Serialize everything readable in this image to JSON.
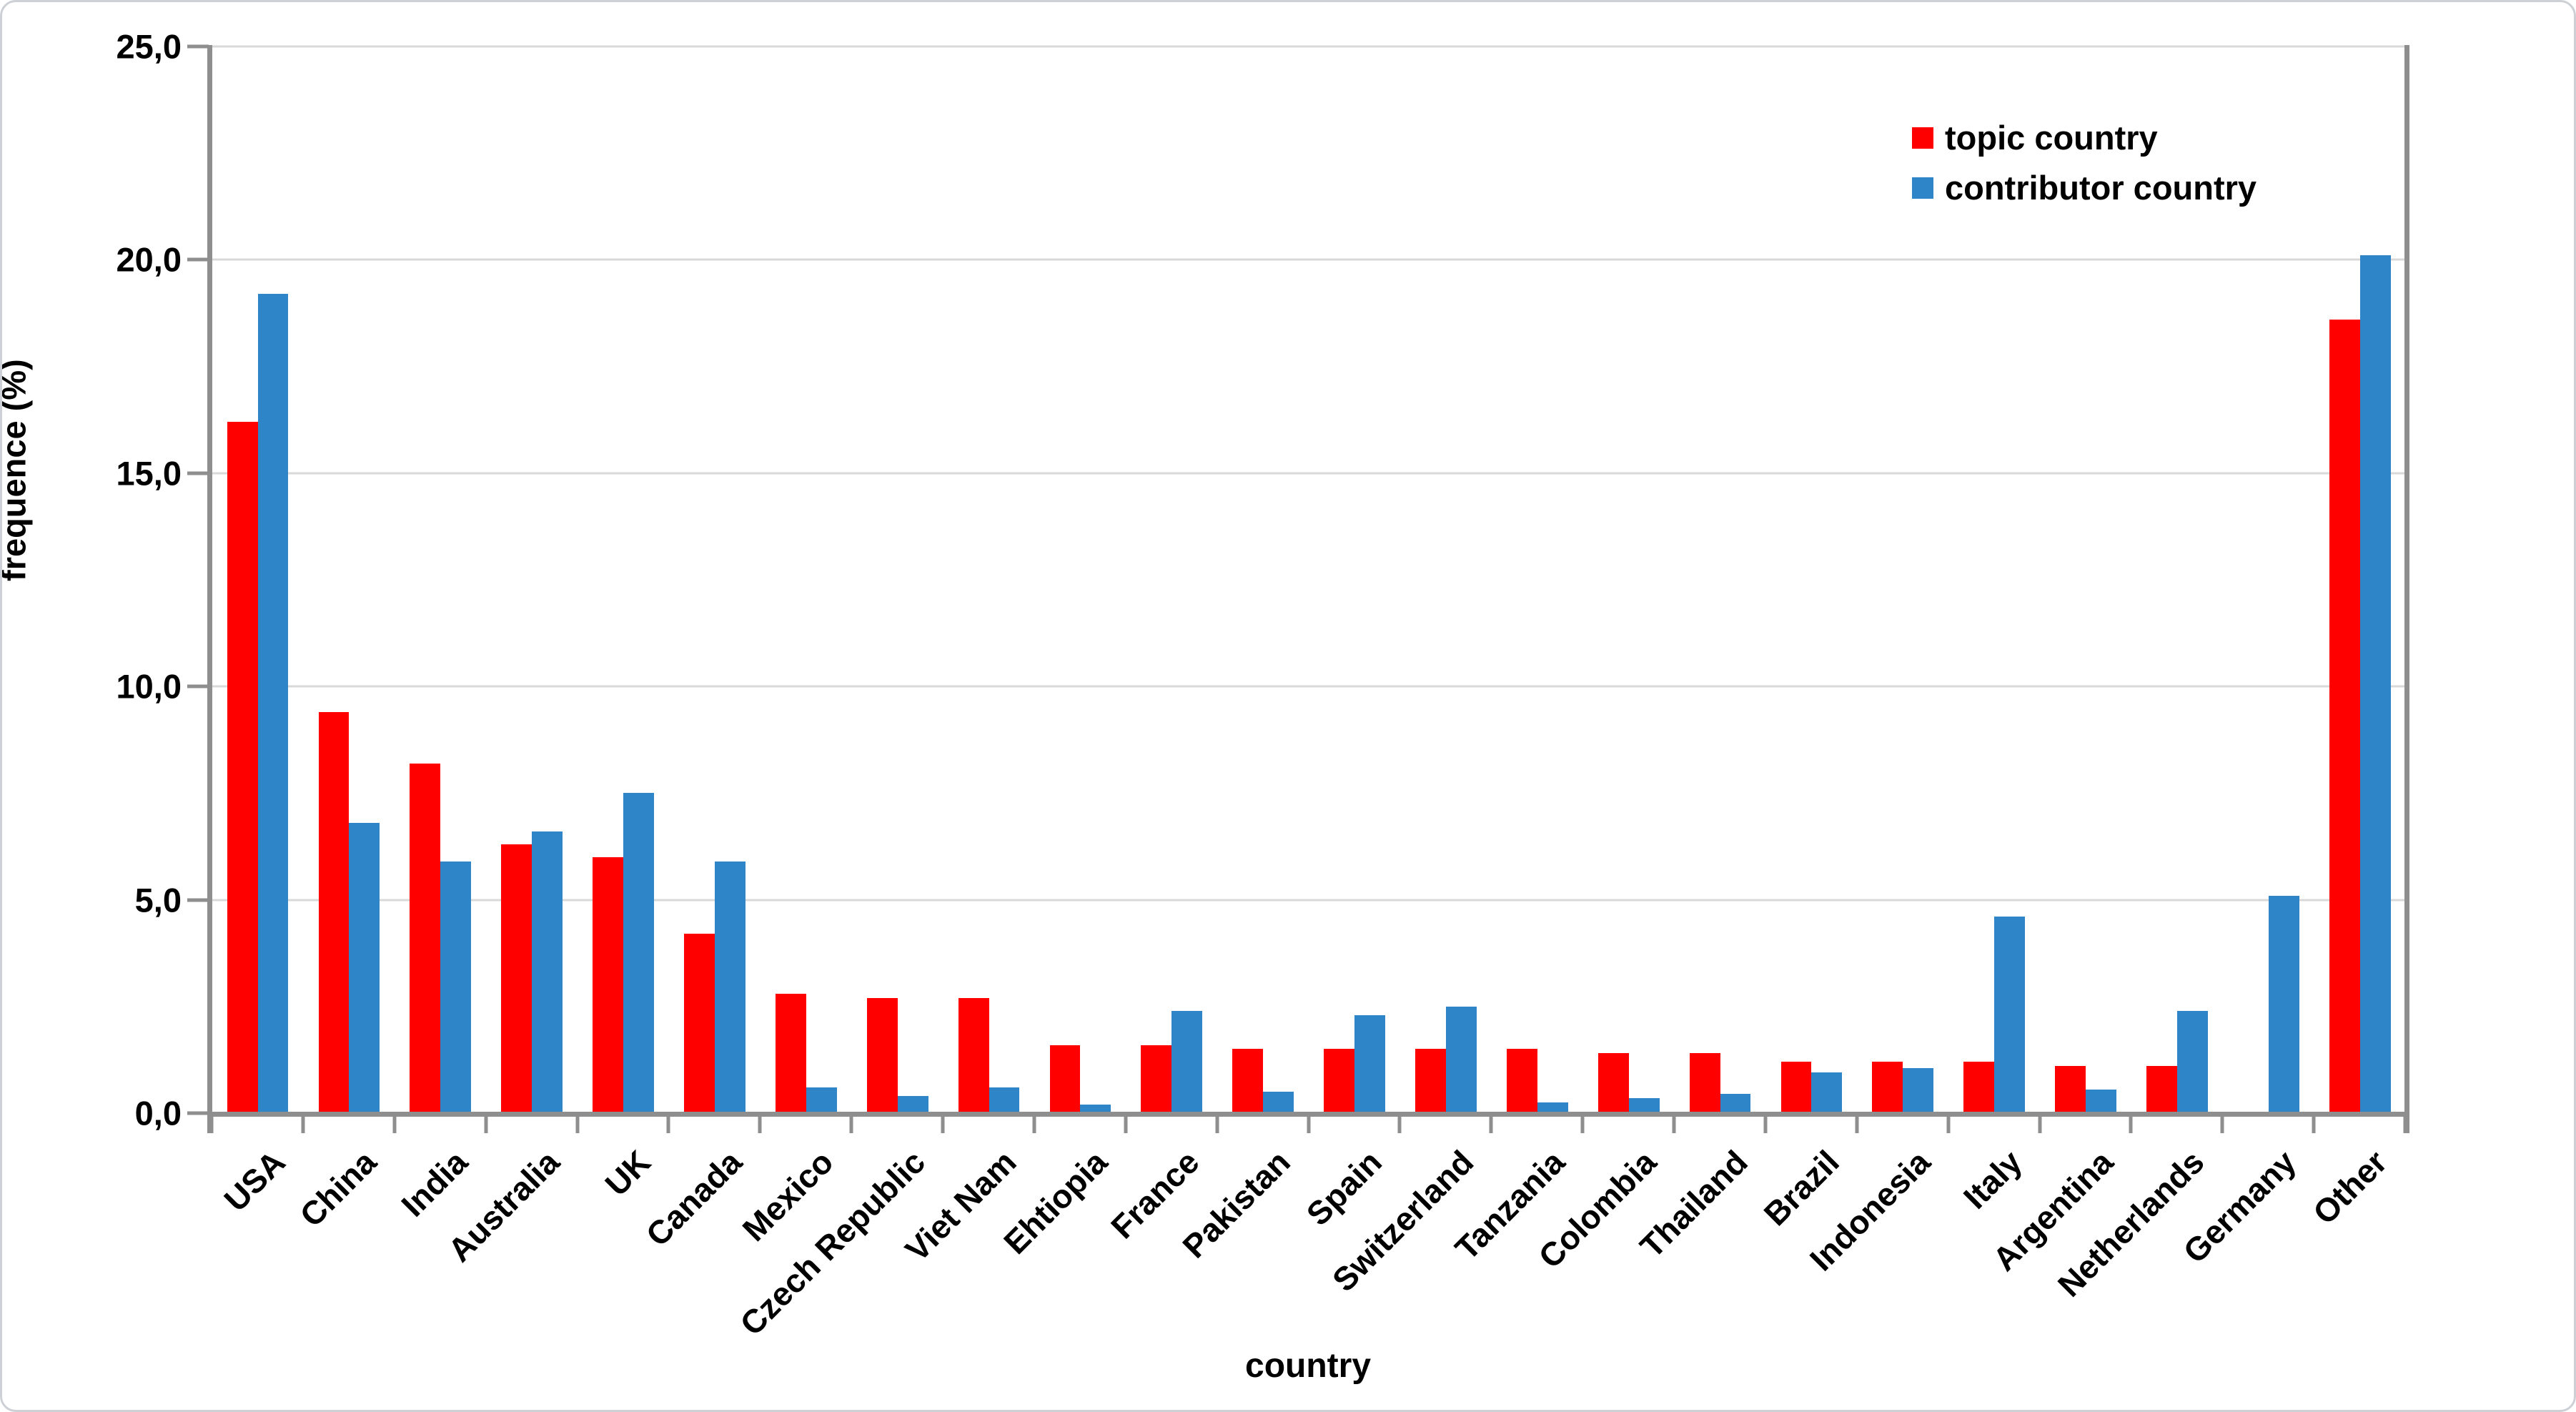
{
  "chart_data": {
    "type": "bar",
    "title": "",
    "xlabel": "country",
    "ylabel": "frequence (%)",
    "ylim": [
      0,
      25
    ],
    "ytick_step": 5,
    "ytick_labels": [
      "0,0",
      "5,0",
      "10,0",
      "15,0",
      "20,0",
      "25,0"
    ],
    "grid": true,
    "legend_position": "top-right-inside",
    "categories": [
      "USA",
      "China",
      "India",
      "Australia",
      "UK",
      "Canada",
      "Mexico",
      "Czech Republic",
      "Viet Nam",
      "Ehtiopia",
      "France",
      "Pakistan",
      "Spain",
      "Switzerland",
      "Tanzania",
      "Colombia",
      "Thailand",
      "Brazil",
      "Indonesia",
      "Italy",
      "Argentina",
      "Netherlands",
      "Germany",
      "Other"
    ],
    "series": [
      {
        "name": "topic country",
        "color": "#fe0000",
        "values": [
          16.2,
          9.4,
          8.2,
          6.3,
          6.0,
          4.2,
          2.8,
          2.7,
          2.7,
          1.6,
          1.6,
          1.5,
          1.5,
          1.5,
          1.5,
          1.4,
          1.4,
          1.2,
          1.2,
          1.2,
          1.1,
          1.1,
          0,
          18.6
        ]
      },
      {
        "name": "contributor country",
        "color": "#2e86c8",
        "values": [
          19.2,
          6.8,
          5.9,
          6.6,
          7.5,
          5.9,
          0.6,
          0.4,
          0.6,
          0.2,
          2.4,
          0.5,
          2.3,
          2.5,
          0.25,
          0.35,
          0.45,
          0.95,
          1.05,
          4.6,
          0.55,
          2.4,
          5.1,
          20.1
        ]
      }
    ],
    "colors": {
      "gridline": "#d9d9d9",
      "axis": "#8e8e8e",
      "text": "#000000",
      "background": "#ffffff"
    }
  }
}
